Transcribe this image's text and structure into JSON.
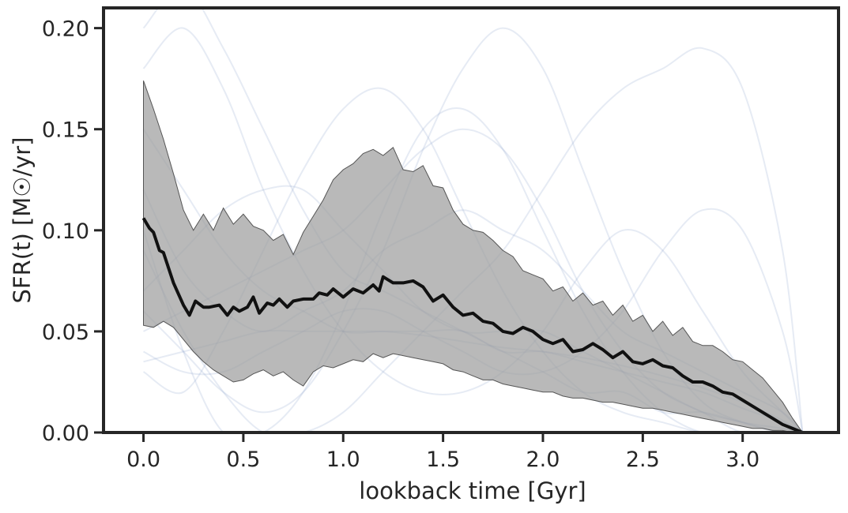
{
  "chart_data": {
    "type": "line",
    "xlabel": "lookback time [Gyr]",
    "ylabel": "SFR(t) [M☉/yr]",
    "xlim": [
      -0.2,
      3.48
    ],
    "ylim": [
      0.0,
      0.21
    ],
    "xticks": [
      0.0,
      0.5,
      1.0,
      1.5,
      2.0,
      2.5,
      3.0
    ],
    "xtick_labels": [
      "0.0",
      "0.5",
      "1.0",
      "1.5",
      "2.0",
      "2.5",
      "3.0"
    ],
    "yticks": [
      0.0,
      0.05,
      0.1,
      0.15,
      0.2
    ],
    "ytick_labels": [
      "0.00",
      "0.05",
      "0.10",
      "0.15",
      "0.20"
    ],
    "grid": false,
    "colors": {
      "median": "#111111",
      "band": "#9e9e9e",
      "samples": "#8fa3cc",
      "axes": "#262626"
    },
    "median": {
      "x": [
        0.0,
        0.03,
        0.05,
        0.08,
        0.1,
        0.13,
        0.15,
        0.2,
        0.23,
        0.26,
        0.3,
        0.33,
        0.38,
        0.42,
        0.45,
        0.48,
        0.52,
        0.55,
        0.58,
        0.62,
        0.65,
        0.68,
        0.72,
        0.75,
        0.8,
        0.85,
        0.88,
        0.92,
        0.95,
        1.0,
        1.05,
        1.1,
        1.15,
        1.18,
        1.2,
        1.25,
        1.3,
        1.35,
        1.4,
        1.45,
        1.5,
        1.55,
        1.6,
        1.65,
        1.7,
        1.75,
        1.8,
        1.85,
        1.9,
        1.95,
        2.0,
        2.05,
        2.1,
        2.15,
        2.2,
        2.25,
        2.3,
        2.35,
        2.4,
        2.45,
        2.5,
        2.55,
        2.6,
        2.65,
        2.7,
        2.75,
        2.8,
        2.85,
        2.9,
        2.95,
        3.0,
        3.05,
        3.1,
        3.15,
        3.2,
        3.25,
        3.3
      ],
      "y": [
        0.106,
        0.101,
        0.099,
        0.09,
        0.089,
        0.08,
        0.074,
        0.063,
        0.058,
        0.065,
        0.062,
        0.062,
        0.063,
        0.058,
        0.062,
        0.06,
        0.062,
        0.067,
        0.059,
        0.064,
        0.063,
        0.066,
        0.062,
        0.065,
        0.066,
        0.066,
        0.069,
        0.068,
        0.071,
        0.067,
        0.071,
        0.069,
        0.073,
        0.07,
        0.077,
        0.074,
        0.074,
        0.075,
        0.072,
        0.065,
        0.068,
        0.062,
        0.058,
        0.059,
        0.055,
        0.054,
        0.05,
        0.049,
        0.052,
        0.05,
        0.046,
        0.044,
        0.046,
        0.04,
        0.041,
        0.044,
        0.041,
        0.037,
        0.04,
        0.035,
        0.034,
        0.036,
        0.033,
        0.032,
        0.028,
        0.025,
        0.025,
        0.023,
        0.02,
        0.019,
        0.016,
        0.013,
        0.01,
        0.007,
        0.004,
        0.002,
        0.0
      ]
    },
    "band_upper": {
      "x": [
        0.0,
        0.05,
        0.1,
        0.15,
        0.2,
        0.25,
        0.3,
        0.35,
        0.4,
        0.45,
        0.5,
        0.55,
        0.6,
        0.65,
        0.7,
        0.75,
        0.8,
        0.85,
        0.9,
        0.95,
        1.0,
        1.05,
        1.1,
        1.15,
        1.2,
        1.25,
        1.3,
        1.35,
        1.4,
        1.45,
        1.5,
        1.55,
        1.6,
        1.65,
        1.7,
        1.75,
        1.8,
        1.85,
        1.9,
        1.95,
        2.0,
        2.05,
        2.1,
        2.15,
        2.2,
        2.25,
        2.3,
        2.35,
        2.4,
        2.45,
        2.5,
        2.55,
        2.6,
        2.65,
        2.7,
        2.75,
        2.8,
        2.85,
        2.9,
        2.95,
        3.0,
        3.05,
        3.1,
        3.15,
        3.2,
        3.25,
        3.3
      ],
      "y": [
        0.174,
        0.16,
        0.145,
        0.128,
        0.11,
        0.1,
        0.108,
        0.1,
        0.111,
        0.103,
        0.108,
        0.102,
        0.1,
        0.095,
        0.098,
        0.088,
        0.099,
        0.107,
        0.115,
        0.125,
        0.13,
        0.133,
        0.138,
        0.14,
        0.137,
        0.141,
        0.13,
        0.129,
        0.132,
        0.122,
        0.121,
        0.11,
        0.103,
        0.1,
        0.099,
        0.095,
        0.09,
        0.087,
        0.08,
        0.078,
        0.076,
        0.07,
        0.072,
        0.065,
        0.069,
        0.063,
        0.065,
        0.058,
        0.063,
        0.055,
        0.058,
        0.05,
        0.055,
        0.048,
        0.052,
        0.045,
        0.043,
        0.043,
        0.04,
        0.036,
        0.035,
        0.031,
        0.027,
        0.021,
        0.015,
        0.007,
        0.0
      ]
    },
    "band_lower": {
      "x": [
        0.0,
        0.05,
        0.1,
        0.15,
        0.2,
        0.25,
        0.3,
        0.35,
        0.4,
        0.45,
        0.5,
        0.55,
        0.6,
        0.65,
        0.7,
        0.75,
        0.8,
        0.85,
        0.9,
        0.95,
        1.0,
        1.05,
        1.1,
        1.15,
        1.2,
        1.25,
        1.3,
        1.35,
        1.4,
        1.45,
        1.5,
        1.55,
        1.6,
        1.65,
        1.7,
        1.75,
        1.8,
        1.85,
        1.9,
        1.95,
        2.0,
        2.05,
        2.1,
        2.15,
        2.2,
        2.25,
        2.3,
        2.35,
        2.4,
        2.45,
        2.5,
        2.55,
        2.6,
        2.65,
        2.7,
        2.75,
        2.8,
        2.85,
        2.9,
        2.95,
        3.0,
        3.05,
        3.1,
        3.15,
        3.2,
        3.25,
        3.3
      ],
      "y": [
        0.053,
        0.052,
        0.055,
        0.052,
        0.046,
        0.04,
        0.035,
        0.031,
        0.028,
        0.025,
        0.026,
        0.029,
        0.031,
        0.028,
        0.03,
        0.026,
        0.023,
        0.03,
        0.033,
        0.032,
        0.034,
        0.036,
        0.035,
        0.039,
        0.037,
        0.039,
        0.038,
        0.037,
        0.036,
        0.035,
        0.034,
        0.031,
        0.03,
        0.028,
        0.026,
        0.026,
        0.024,
        0.023,
        0.022,
        0.021,
        0.02,
        0.02,
        0.018,
        0.017,
        0.017,
        0.016,
        0.015,
        0.015,
        0.014,
        0.013,
        0.012,
        0.012,
        0.011,
        0.01,
        0.009,
        0.008,
        0.007,
        0.006,
        0.005,
        0.004,
        0.003,
        0.002,
        0.002,
        0.001,
        0.001,
        0.0,
        0.0
      ]
    },
    "samples": [
      {
        "x": [
          0.0,
          0.2,
          0.4,
          0.6,
          0.8,
          1.0,
          1.2,
          1.4,
          1.6,
          1.8,
          2.0,
          2.2,
          2.4,
          2.6,
          2.8,
          3.0,
          3.2,
          3.3
        ],
        "y": [
          0.2,
          0.22,
          0.19,
          0.15,
          0.11,
          0.08,
          0.07,
          0.06,
          0.05,
          0.04,
          0.03,
          0.02,
          0.02,
          0.01,
          0.01,
          0.005,
          0.002,
          0.0
        ]
      },
      {
        "x": [
          0.0,
          0.2,
          0.4,
          0.6,
          0.8,
          1.0,
          1.2,
          1.4,
          1.6,
          1.8,
          2.0,
          2.2,
          2.4,
          2.6,
          2.8,
          3.0,
          3.2,
          3.3
        ],
        "y": [
          0.03,
          0.02,
          0.05,
          0.09,
          0.13,
          0.16,
          0.17,
          0.15,
          0.11,
          0.07,
          0.04,
          0.02,
          0.01,
          0.005,
          0.0,
          0.0,
          0.0,
          0.0
        ]
      },
      {
        "x": [
          0.0,
          0.2,
          0.4,
          0.6,
          0.8,
          1.0,
          1.2,
          1.4,
          1.6,
          1.8,
          2.0,
          2.2,
          2.4,
          2.6,
          2.8,
          3.0,
          3.2,
          3.3
        ],
        "y": [
          0.06,
          0.04,
          0.02,
          0.01,
          0.02,
          0.05,
          0.09,
          0.14,
          0.18,
          0.2,
          0.18,
          0.13,
          0.08,
          0.04,
          0.015,
          0.005,
          0.0,
          0.0
        ]
      },
      {
        "x": [
          0.0,
          0.2,
          0.4,
          0.6,
          0.8,
          1.0,
          1.2,
          1.4,
          1.6,
          1.8,
          2.0,
          2.2,
          2.4,
          2.6,
          2.8,
          3.0,
          3.2,
          3.3
        ],
        "y": [
          0.09,
          0.05,
          0.02,
          0.0,
          0.0,
          0.01,
          0.03,
          0.05,
          0.07,
          0.09,
          0.12,
          0.15,
          0.17,
          0.18,
          0.19,
          0.17,
          0.09,
          0.0
        ]
      },
      {
        "x": [
          0.0,
          0.2,
          0.4,
          0.6,
          0.8,
          1.0,
          1.2,
          1.4,
          1.6,
          1.8,
          2.0,
          2.2,
          2.4,
          2.6,
          2.8,
          3.0,
          3.2,
          3.3
        ],
        "y": [
          0.12,
          0.08,
          0.06,
          0.05,
          0.06,
          0.07,
          0.09,
          0.1,
          0.11,
          0.1,
          0.09,
          0.07,
          0.05,
          0.04,
          0.03,
          0.02,
          0.01,
          0.0
        ]
      },
      {
        "x": [
          0.0,
          0.2,
          0.4,
          0.6,
          0.8,
          1.0,
          1.2,
          1.4,
          1.6,
          1.8,
          2.0,
          2.2,
          2.4,
          2.6,
          2.8,
          3.0,
          3.2,
          3.3
        ],
        "y": [
          0.15,
          0.12,
          0.09,
          0.07,
          0.06,
          0.05,
          0.05,
          0.05,
          0.05,
          0.04,
          0.04,
          0.035,
          0.03,
          0.025,
          0.02,
          0.012,
          0.005,
          0.0
        ]
      },
      {
        "x": [
          0.0,
          0.2,
          0.4,
          0.6,
          0.8,
          1.0,
          1.2,
          1.4,
          1.6,
          1.8,
          2.0,
          2.2,
          2.4,
          2.6,
          2.8,
          3.0,
          3.2,
          3.3
        ],
        "y": [
          0.04,
          0.03,
          0.03,
          0.04,
          0.05,
          0.06,
          0.06,
          0.05,
          0.04,
          0.03,
          0.03,
          0.04,
          0.06,
          0.09,
          0.11,
          0.1,
          0.05,
          0.0
        ]
      },
      {
        "x": [
          0.0,
          0.2,
          0.4,
          0.6,
          0.8,
          1.0,
          1.2,
          1.4,
          1.6,
          1.8,
          2.0,
          2.2,
          2.4,
          2.6,
          2.8,
          3.0,
          3.2,
          3.3
        ],
        "y": [
          0.18,
          0.2,
          0.17,
          0.12,
          0.08,
          0.05,
          0.03,
          0.02,
          0.02,
          0.03,
          0.05,
          0.08,
          0.1,
          0.09,
          0.06,
          0.03,
          0.01,
          0.0
        ]
      },
      {
        "x": [
          0.0,
          0.2,
          0.4,
          0.6,
          0.8,
          1.0,
          1.2,
          1.4,
          1.6,
          1.8,
          2.0,
          2.2,
          2.4,
          2.6,
          2.8,
          3.0,
          3.2,
          3.3
        ],
        "y": [
          0.07,
          0.09,
          0.11,
          0.12,
          0.12,
          0.1,
          0.08,
          0.06,
          0.05,
          0.05,
          0.05,
          0.04,
          0.03,
          0.02,
          0.01,
          0.005,
          0.0,
          0.0
        ]
      },
      {
        "x": [
          0.0,
          0.2,
          0.4,
          0.6,
          0.8,
          1.0,
          1.2,
          1.4,
          1.6,
          1.8,
          2.0,
          2.2,
          2.4,
          2.6,
          2.8,
          3.0,
          3.2,
          3.3
        ],
        "y": [
          0.05,
          0.06,
          0.07,
          0.08,
          0.09,
          0.1,
          0.12,
          0.14,
          0.15,
          0.14,
          0.11,
          0.07,
          0.04,
          0.02,
          0.01,
          0.0,
          0.0,
          0.0
        ]
      },
      {
        "x": [
          0.0,
          0.2,
          0.4,
          0.6,
          0.8,
          1.0,
          1.2,
          1.4,
          1.6,
          1.8,
          2.0,
          2.2,
          2.4,
          2.6,
          2.8,
          3.0,
          3.2,
          3.3
        ],
        "y": [
          0.1,
          0.04,
          0.0,
          0.0,
          0.02,
          0.06,
          0.11,
          0.15,
          0.16,
          0.14,
          0.1,
          0.06,
          0.03,
          0.01,
          0.0,
          0.0,
          0.0,
          0.0
        ]
      },
      {
        "x": [
          0.0,
          0.2,
          0.4,
          0.6,
          0.8,
          1.0,
          1.2,
          1.4,
          1.6,
          1.8,
          2.0,
          2.2,
          2.4,
          2.6,
          2.8,
          3.0,
          3.2,
          3.3
        ],
        "y": [
          0.035,
          0.04,
          0.045,
          0.05,
          0.05,
          0.05,
          0.05,
          0.048,
          0.045,
          0.042,
          0.04,
          0.037,
          0.033,
          0.028,
          0.022,
          0.015,
          0.006,
          0.0
        ]
      }
    ]
  }
}
